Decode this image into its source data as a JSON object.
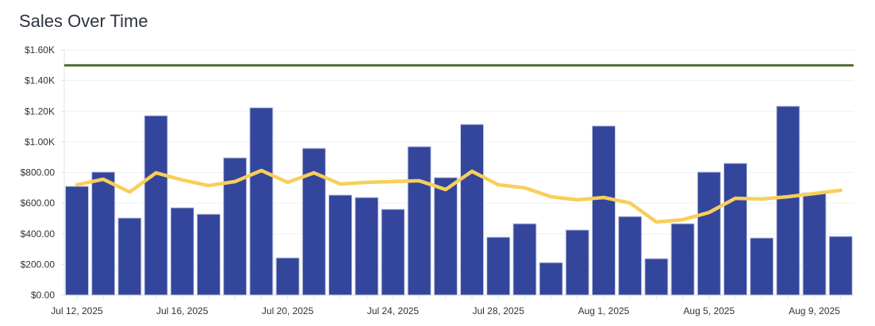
{
  "chart_data": {
    "type": "bar",
    "title": "Sales Over Time",
    "xlabel": "",
    "ylabel": "",
    "ylim": [
      0,
      1600
    ],
    "grid": true,
    "y_ticks": [
      "$0.00",
      "$200.00",
      "$400.00",
      "$600.00",
      "$800.00",
      "$1.00K",
      "$1.20K",
      "$1.40K",
      "$1.60K"
    ],
    "x_tick_labels": [
      {
        "index": 0,
        "label": "Jul 12, 2025"
      },
      {
        "index": 4,
        "label": "Jul 16, 2025"
      },
      {
        "index": 8,
        "label": "Jul 20, 2025"
      },
      {
        "index": 12,
        "label": "Jul 24, 2025"
      },
      {
        "index": 16,
        "label": "Jul 28, 2025"
      },
      {
        "index": 20,
        "label": "Aug 1, 2025"
      },
      {
        "index": 24,
        "label": "Aug 5, 2025"
      },
      {
        "index": 28,
        "label": "Aug 9, 2025"
      }
    ],
    "categories": [
      "2025-07-12",
      "2025-07-13",
      "2025-07-14",
      "2025-07-15",
      "2025-07-16",
      "2025-07-17",
      "2025-07-18",
      "2025-07-19",
      "2025-07-20",
      "2025-07-21",
      "2025-07-22",
      "2025-07-23",
      "2025-07-24",
      "2025-07-25",
      "2025-07-26",
      "2025-07-27",
      "2025-07-28",
      "2025-07-29",
      "2025-07-30",
      "2025-07-31",
      "2025-08-01",
      "2025-08-02",
      "2025-08-03",
      "2025-08-04",
      "2025-08-05",
      "2025-08-06",
      "2025-08-07",
      "2025-08-08",
      "2025-08-09",
      "2025-08-10"
    ],
    "series": [
      {
        "type": "bar",
        "color": "#33469b",
        "values": [
          710,
          803,
          503,
          1171,
          570,
          528,
          896,
          1223,
          243,
          958,
          653,
          637,
          560,
          969,
          767,
          1114,
          378,
          466,
          212,
          425,
          1104,
          513,
          238,
          466,
          803,
          860,
          373,
          1233,
          668,
          383
        ]
      },
      {
        "type": "line",
        "color": "#f7cf5a",
        "values": [
          720,
          756,
          673,
          798,
          751,
          715,
          741,
          813,
          736,
          798,
          725,
          736,
          741,
          746,
          689,
          808,
          720,
          700,
          642,
          622,
          637,
          601,
          477,
          492,
          539,
          632,
          627,
          642,
          663,
          684
        ]
      }
    ],
    "reference_line": {
      "value": 1500,
      "color": "#4f6b35"
    }
  }
}
